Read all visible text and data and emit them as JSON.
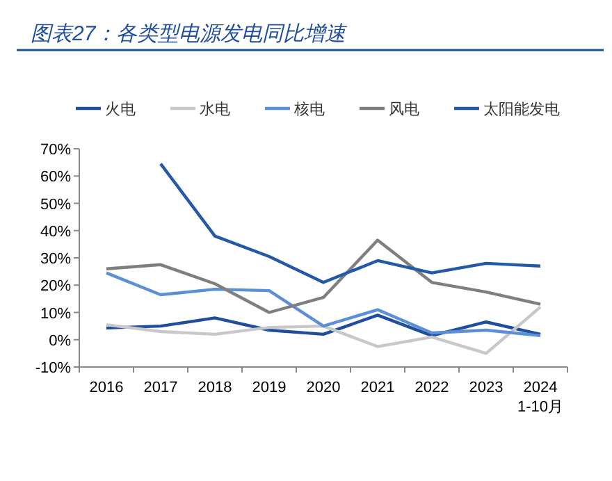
{
  "chart_data": {
    "type": "line",
    "title": "图表27：各类型电源发电同比增速",
    "categories": [
      "2016",
      "2017",
      "2018",
      "2019",
      "2020",
      "2021",
      "2022",
      "2023",
      "2024\n1-10月"
    ],
    "series": [
      {
        "name": "火电",
        "color": "#1f4e9e",
        "values": [
          4.3,
          5,
          8,
          3.5,
          2,
          9,
          1.5,
          6.5,
          2
        ]
      },
      {
        "name": "水电",
        "color": "#c8c8c8",
        "values": [
          5.5,
          3,
          2,
          4.5,
          5,
          -2.5,
          1,
          -5,
          12
        ]
      },
      {
        "name": "核电",
        "color": "#5b8fd6",
        "values": [
          24.5,
          16.5,
          18.5,
          18,
          5,
          11,
          2.5,
          3.5,
          1.5
        ]
      },
      {
        "name": "风电",
        "color": "#7f7f7f",
        "values": [
          26,
          27.5,
          20.5,
          10,
          15.5,
          36.5,
          21,
          17.5,
          13
        ]
      },
      {
        "name": "太阳能发电",
        "color": "#2458a8",
        "values": [
          null,
          64.5,
          38,
          30.5,
          21,
          29,
          24.5,
          28,
          27
        ]
      }
    ],
    "ylim": [
      -10,
      70
    ],
    "yticks": [
      {
        "value": -10,
        "label": "-10%"
      },
      {
        "value": 0,
        "label": "0%"
      },
      {
        "value": 10,
        "label": "10%"
      },
      {
        "value": 20,
        "label": "20%"
      },
      {
        "value": 30,
        "label": "30%"
      },
      {
        "value": 40,
        "label": "40%"
      },
      {
        "value": 50,
        "label": "50%"
      },
      {
        "value": 60,
        "label": "60%"
      },
      {
        "value": 70,
        "label": "70%"
      }
    ],
    "grid": false,
    "legend": "top",
    "marker": "none",
    "line_style": "solid"
  }
}
